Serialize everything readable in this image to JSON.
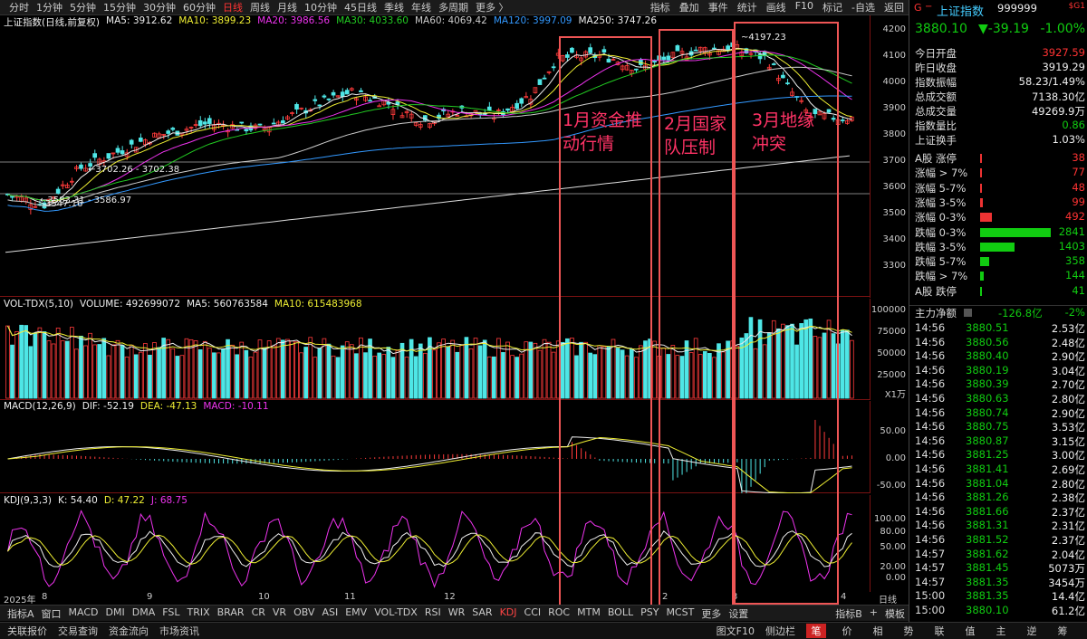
{
  "periods": [
    "分时",
    "1分钟",
    "5分钟",
    "15分钟",
    "30分钟",
    "60分钟",
    "日线",
    "周线",
    "月线",
    "10分钟",
    "45日线",
    "季线",
    "年线",
    "多周期",
    "更多 〉"
  ],
  "active_period": "日线",
  "tools": [
    "指标",
    "叠加",
    "事件",
    "统计",
    "画线",
    "F10",
    "标记",
    "-自选",
    "返回"
  ],
  "title": "上证指数(日线,前复权)",
  "ma": [
    {
      "label": "MA5: 3912.62",
      "color": "#eeeeee"
    },
    {
      "label": "MA10: 3899.23",
      "color": "#eeee33"
    },
    {
      "label": "MA20: 3986.56",
      "color": "#ee33ee"
    },
    {
      "label": "MA30: 4033.60",
      "color": "#22cc22"
    },
    {
      "label": "MA60: 4069.42",
      "color": "#cccccc"
    },
    {
      "label": "MA120: 3997.09",
      "color": "#3399ff"
    },
    {
      "label": "MA250: 3747.26",
      "color": "#eeeeee"
    }
  ],
  "price_axis": [
    "4200",
    "4100",
    "4000",
    "3900",
    "3800",
    "3700",
    "3600",
    "3500",
    "3400",
    "3300"
  ],
  "price_annotations": {
    "high": "4197.23",
    "mid": "3702.26 - 3702.38",
    "low1": "3583.31 - 3586.97",
    "low2": "3547.16"
  },
  "vol": {
    "header": "VOL-TDX(5,10)",
    "volume": "VOLUME: 492699072",
    "ma5": "MA5: 560763584",
    "ma10": "MA10: 615483968",
    "axis": [
      "100000",
      "75000",
      "50000",
      "25000"
    ],
    "unit": "X1万"
  },
  "macd": {
    "header": "MACD(12,26,9)",
    "dif": "DIF: -52.19",
    "dea": "DEA: -47.13",
    "macd": "MACD: -10.11",
    "axis": [
      "50.00",
      "0.00",
      "-50.00"
    ]
  },
  "kdj": {
    "header": "KDJ(9,3,3)",
    "k": "K: 54.40",
    "d": "D: 47.22",
    "j": "J: 68.75",
    "axis": [
      "100.00",
      "80.00",
      "50.00",
      "20.00",
      "0.00"
    ]
  },
  "dates": [
    "2025年",
    "8",
    "9",
    "10",
    "11",
    "12",
    "2",
    "3",
    "4"
  ],
  "date_right": "日线",
  "tabs": [
    "指标A",
    "窗口",
    "MACD",
    "DMI",
    "DMA",
    "FSL",
    "TRIX",
    "BRAR",
    "CR",
    "VR",
    "OBV",
    "ASI",
    "EMV",
    "VOL-TDX",
    "RSI",
    "WR",
    "SAR",
    "KDJ",
    "CCI",
    "ROC",
    "MTM",
    "BOLL",
    "PSY",
    "MCST",
    "更多",
    "设置"
  ],
  "active_tab": "KDJ",
  "tabs_right": [
    "指标B",
    "+",
    "模板"
  ],
  "annotations": [
    "1月资金推动行情",
    "2月国家队压制",
    "3月地缘冲突"
  ],
  "status": [
    "关联报价",
    "交易查询",
    "资金流向",
    "市场资讯"
  ],
  "status_right": [
    "图文F10",
    "侧边栏"
  ],
  "side_icons": [
    "笔",
    "价",
    "相",
    "势",
    "联",
    "值",
    "主",
    "逆",
    "筹"
  ],
  "quote": {
    "code": "999999",
    "name": "上证指数",
    "price": "3880.10",
    "change": "▼-39.19",
    "pct": "-1.00%",
    "badge": "$G1",
    "stats": [
      {
        "l": "今日开盘",
        "v": "3927.59",
        "c": "red"
      },
      {
        "l": "昨日收盘",
        "v": "3919.29",
        "c": "wht"
      },
      {
        "l": "指数振幅",
        "v": "58.23/1.49%",
        "c": "wht"
      },
      {
        "l": "总成交额",
        "v": "7138.30亿",
        "c": "wht"
      },
      {
        "l": "总成交量",
        "v": "49269.9万",
        "c": "wht"
      },
      {
        "l": "指数量比",
        "v": "0.86",
        "c": "grn"
      },
      {
        "l": "上证换手",
        "v": "1.03%",
        "c": "wht"
      }
    ],
    "breadth": [
      {
        "l": "A股 涨停",
        "v": "38",
        "c": "red",
        "bar": 0.02
      },
      {
        "l": "涨幅 > 7%",
        "v": "77",
        "c": "red",
        "bar": 0.03
      },
      {
        "l": "涨幅 5-7%",
        "v": "48",
        "c": "red",
        "bar": 0.02
      },
      {
        "l": "涨幅 3-5%",
        "v": "99",
        "c": "red",
        "bar": 0.04
      },
      {
        "l": "涨幅 0-3%",
        "v": "492",
        "c": "red",
        "bar": 0.17
      },
      {
        "l": "跌幅 0-3%",
        "v": "2841",
        "c": "grn",
        "bar": 1.0
      },
      {
        "l": "跌幅 3-5%",
        "v": "1403",
        "c": "grn",
        "bar": 0.49
      },
      {
        "l": "跌幅 5-7%",
        "v": "358",
        "c": "grn",
        "bar": 0.13
      },
      {
        "l": "跌幅 > 7%",
        "v": "144",
        "c": "grn",
        "bar": 0.05
      },
      {
        "l": "A股 跌停",
        "v": "41",
        "c": "grn",
        "bar": 0.01
      }
    ],
    "flow": {
      "l": "主力净额",
      "v": "-126.8亿",
      "p": "-2%"
    },
    "ticks": [
      {
        "t": "14:56",
        "p": "3880.51",
        "v": "2.53亿"
      },
      {
        "t": "14:56",
        "p": "3880.56",
        "v": "2.48亿"
      },
      {
        "t": "14:56",
        "p": "3880.40",
        "v": "2.90亿"
      },
      {
        "t": "14:56",
        "p": "3880.19",
        "v": "3.04亿"
      },
      {
        "t": "14:56",
        "p": "3880.39",
        "v": "2.70亿"
      },
      {
        "t": "14:56",
        "p": "3880.63",
        "v": "2.80亿"
      },
      {
        "t": "14:56",
        "p": "3880.74",
        "v": "2.90亿"
      },
      {
        "t": "14:56",
        "p": "3880.75",
        "v": "3.53亿"
      },
      {
        "t": "14:56",
        "p": "3880.87",
        "v": "3.15亿"
      },
      {
        "t": "14:56",
        "p": "3881.25",
        "v": "3.00亿"
      },
      {
        "t": "14:56",
        "p": "3881.41",
        "v": "2.69亿"
      },
      {
        "t": "14:56",
        "p": "3881.04",
        "v": "2.80亿"
      },
      {
        "t": "14:56",
        "p": "3881.26",
        "v": "2.38亿"
      },
      {
        "t": "14:56",
        "p": "3881.66",
        "v": "2.37亿"
      },
      {
        "t": "14:56",
        "p": "3881.31",
        "v": "2.31亿"
      },
      {
        "t": "14:56",
        "p": "3881.52",
        "v": "2.37亿"
      },
      {
        "t": "14:57",
        "p": "3881.62",
        "v": "2.04亿"
      },
      {
        "t": "14:57",
        "p": "3881.45",
        "v": "5073万"
      },
      {
        "t": "14:57",
        "p": "3881.35",
        "v": "3454万"
      },
      {
        "t": "15:00",
        "p": "3881.35",
        "v": "14.4亿"
      },
      {
        "t": "15:00",
        "p": "3880.10",
        "v": "61.2亿"
      }
    ]
  }
}
